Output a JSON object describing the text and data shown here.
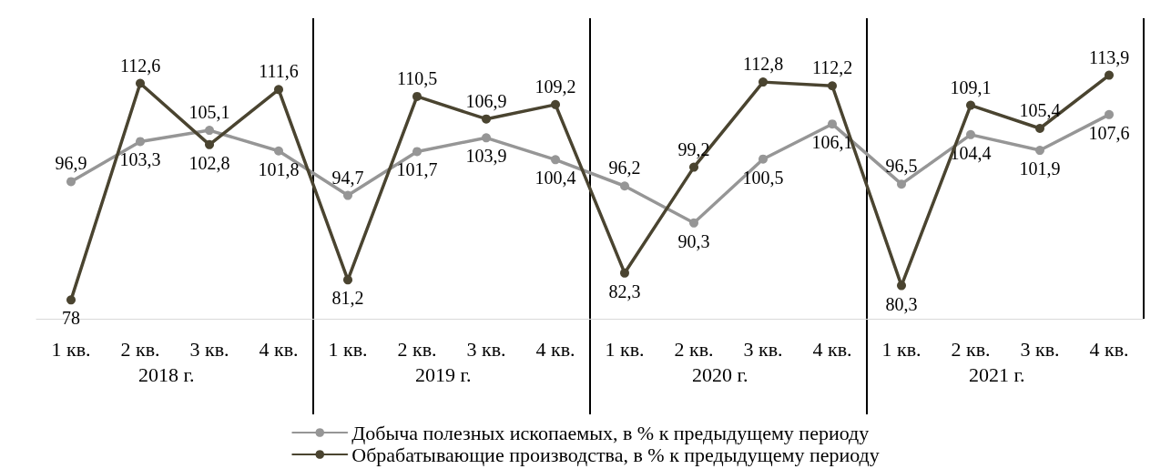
{
  "chart_data": {
    "type": "line",
    "categories": [
      "1 кв.",
      "2 кв.",
      "3 кв.",
      "4 кв.",
      "1 кв.",
      "2 кв.",
      "3 кв.",
      "4 кв.",
      "1 кв.",
      "2 кв.",
      "3 кв.",
      "4 кв.",
      "1 кв.",
      "2 кв.",
      "3 кв.",
      "4 кв."
    ],
    "series": [
      {
        "name": "Добыча полезных ископаемых, в % к предыдущему периоду",
        "color": "#969696",
        "values": [
          96.9,
          103.3,
          105.1,
          101.8,
          94.7,
          101.7,
          103.9,
          100.4,
          96.2,
          90.3,
          100.5,
          106.1,
          96.5,
          104.4,
          101.9,
          107.6
        ],
        "value_labels": [
          "96,9",
          "103,3",
          "105,1",
          "101,8",
          "94,7",
          "101,7",
          "103,9",
          "100,4",
          "96,2",
          "90,3",
          "100,5",
          "106,1",
          "96,5",
          "104,4",
          "101,9",
          "107,6"
        ]
      },
      {
        "name": "Обрабатывающие производства, в % к предыдущему периоду",
        "color": "#4a4430",
        "values": [
          78,
          112.6,
          102.8,
          111.6,
          81.2,
          110.5,
          106.9,
          109.2,
          82.3,
          99.2,
          112.8,
          112.2,
          80.3,
          109.1,
          105.4,
          113.9
        ],
        "value_labels": [
          "78",
          "112,6",
          "102,8",
          "111,6",
          "81,2",
          "110,5",
          "106,9",
          "109,2",
          "82,3",
          "99,2",
          "112,8",
          "112,2",
          "80,3",
          "109,1",
          "105,4",
          "113,9"
        ]
      }
    ],
    "annotations": [
      "2018 г.",
      "2019 г.",
      "2020 г.",
      "2021 г."
    ],
    "ylim": [
      75,
      123
    ],
    "tick_labels": "x",
    "legend": "bottom",
    "marker": "circle",
    "line_style": "solid"
  }
}
